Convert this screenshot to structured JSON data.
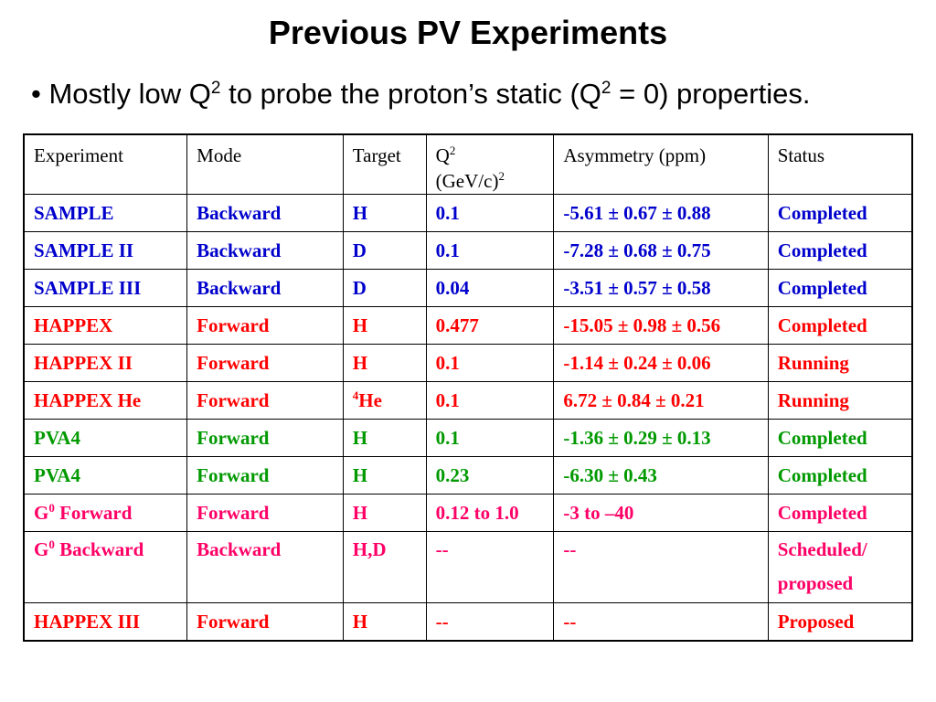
{
  "title": "Previous PV Experiments",
  "bullet": {
    "marker": "•",
    "text_1": "Mostly low Q",
    "sup_1": "2",
    "text_2": " to probe the proton’s static (Q",
    "sup_2": "2",
    "text_3": " = 0) properties."
  },
  "table": {
    "headers": {
      "experiment": "Experiment",
      "mode": "Mode",
      "target": "Target",
      "q2_line1": "Q",
      "q2_sup": "2",
      "q2_line2": "(GeV/c)",
      "q2_unit_sup": "2",
      "asymmetry": "Asymmetry (ppm)",
      "status": "Status"
    },
    "rows": [
      {
        "experiment": "SAMPLE",
        "experiment_pre": "",
        "experiment_sup": "",
        "mode": "Backward",
        "target": "H",
        "target_sup": "",
        "q2": "0.1",
        "asymmetry": "-5.61 ± 0.67 ± 0.88",
        "status": "Completed",
        "status_line2": "",
        "color": "#0000cc"
      },
      {
        "experiment": "SAMPLE II",
        "experiment_pre": "",
        "experiment_sup": "",
        "mode": "Backward",
        "target": "D",
        "target_sup": "",
        "q2": "0.1",
        "asymmetry": "-7.28 ± 0.68 ± 0.75",
        "status": "Completed",
        "status_line2": "",
        "color": "#0000cc"
      },
      {
        "experiment": "SAMPLE III",
        "experiment_pre": "",
        "experiment_sup": "",
        "mode": "Backward",
        "target": "D",
        "target_sup": "",
        "q2": "0.04",
        "asymmetry": "-3.51 ± 0.57 ± 0.58",
        "status": "Completed",
        "status_line2": "",
        "color": "#0000cc"
      },
      {
        "experiment": "HAPPEX",
        "experiment_pre": "",
        "experiment_sup": "",
        "mode": "Forward",
        "target": "H",
        "target_sup": "",
        "q2": "0.477",
        "asymmetry": "-15.05 ± 0.98 ± 0.56",
        "status": "Completed",
        "status_line2": "",
        "color": "#ff0000"
      },
      {
        "experiment": "HAPPEX II",
        "experiment_pre": "",
        "experiment_sup": "",
        "mode": "Forward",
        "target": "H",
        "target_sup": "",
        "q2": "0.1",
        "asymmetry": "-1.14 ± 0.24 ± 0.06",
        "status": "Running",
        "status_line2": "",
        "color": "#ff0000"
      },
      {
        "experiment": "HAPPEX He",
        "experiment_pre": "",
        "experiment_sup": "",
        "mode": "Forward",
        "target": "He",
        "target_sup": "4",
        "q2": "0.1",
        "asymmetry": "6.72 ± 0.84 ± 0.21",
        "status": "Running",
        "status_line2": "",
        "color": "#ff0000"
      },
      {
        "experiment": "PVA4",
        "experiment_pre": "",
        "experiment_sup": "",
        "mode": "Forward",
        "target": "H",
        "target_sup": "",
        "q2": "0.1",
        "asymmetry": "-1.36 ± 0.29 ± 0.13",
        "status": "Completed",
        "status_line2": "",
        "color": "#009900"
      },
      {
        "experiment": "PVA4",
        "experiment_pre": "",
        "experiment_sup": "",
        "mode": "Forward",
        "target": "H",
        "target_sup": "",
        "q2": "0.23",
        "asymmetry": "-6.30 ± 0.43",
        "status": "Completed",
        "status_line2": "",
        "color": "#009900"
      },
      {
        "experiment": " Forward",
        "experiment_pre": "G",
        "experiment_sup": "0",
        "mode": "Forward",
        "target": "H",
        "target_sup": "",
        "q2": "0.12 to 1.0",
        "asymmetry": "-3 to –40",
        "status": "Completed",
        "status_line2": "",
        "color": "#ff0066"
      },
      {
        "experiment": " Backward",
        "experiment_pre": "G",
        "experiment_sup": "0",
        "mode": "Backward",
        "target": "H,D",
        "target_sup": "",
        "q2": "--",
        "asymmetry": "--",
        "status": "Scheduled/",
        "status_line2": "proposed",
        "color": "#ff0066",
        "tall": true
      },
      {
        "experiment": "HAPPEX III",
        "experiment_pre": "",
        "experiment_sup": "",
        "mode": "Forward",
        "target": "H",
        "target_sup": "",
        "q2": "--",
        "asymmetry": "--",
        "status": "Proposed",
        "status_line2": "",
        "color": "#ff0000"
      }
    ]
  }
}
